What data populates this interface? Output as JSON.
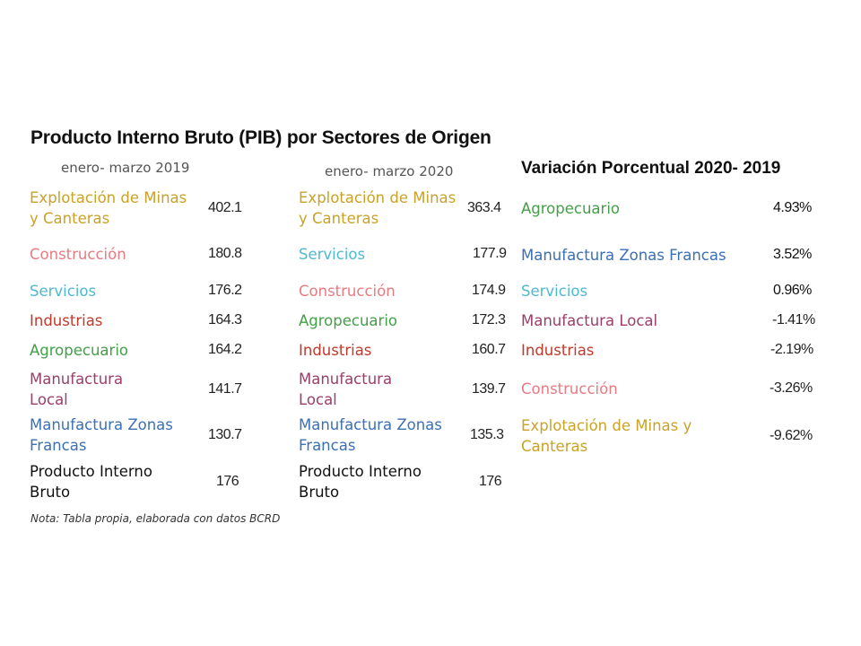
{
  "title": "Producto Interno Bruto (PIB) por Sectores de Origen",
  "colors": {
    "mining": "#c9a227",
    "construction": "#e77b82",
    "services": "#4fb9cf",
    "industries": "#c0392b",
    "agro": "#43a047",
    "local": "#9c3d6b",
    "freezones": "#3b6fb6",
    "total": "#111111"
  },
  "table2019": {
    "heading": "enero- marzo 2019",
    "rows": [
      {
        "name": "Explotación de Minas y Canteras",
        "value": "402.1",
        "color": "#c9a227"
      },
      {
        "name": "Construcción",
        "value": "180.8",
        "color": "#e77b82"
      },
      {
        "name": "Servicios",
        "value": "176.2",
        "color": "#4fb9cf"
      },
      {
        "name": "Industrias",
        "value": "164.3",
        "color": "#c0392b"
      },
      {
        "name": "Agropecuario",
        "value": "164.2",
        "color": "#43a047"
      },
      {
        "name": "Manufactura Local",
        "value": "141.7",
        "color": "#9c3d6b"
      },
      {
        "name": "Manufactura Zonas Francas",
        "value": "130.7",
        "color": "#3b6fb6"
      },
      {
        "name": "Producto Interno Bruto",
        "value": "176",
        "color": "#111111"
      }
    ]
  },
  "table2020": {
    "heading": "enero- marzo 2020",
    "rows": [
      {
        "name": "Explotación de Minas y Canteras",
        "value": "363.4",
        "color": "#c9a227"
      },
      {
        "name": "Servicios",
        "value": "177.9",
        "color": "#4fb9cf"
      },
      {
        "name": "Construcción",
        "value": "174.9",
        "color": "#e77b82"
      },
      {
        "name": "Agropecuario",
        "value": "172.3",
        "color": "#43a047"
      },
      {
        "name": "Industrias",
        "value": "160.7",
        "color": "#c0392b"
      },
      {
        "name": "Manufactura Local",
        "value": "139.7",
        "color": "#9c3d6b"
      },
      {
        "name": "Manufactura Zonas Francas",
        "value": "135.3",
        "color": "#3b6fb6"
      },
      {
        "name": "Producto Interno Bruto",
        "value": "176",
        "color": "#111111"
      }
    ]
  },
  "variation": {
    "heading": "Variación Porcentual 2020- 2019",
    "rows": [
      {
        "name": "Agropecuario",
        "value": "4.93%",
        "color": "#43a047"
      },
      {
        "name": "Manufactura Zonas Francas",
        "value": "3.52%",
        "color": "#3b6fb6"
      },
      {
        "name": "Servicios",
        "value": "0.96%",
        "color": "#4fb9cf"
      },
      {
        "name": "Manufactura Local",
        "value": "-1.41%",
        "color": "#9c3d6b"
      },
      {
        "name": "Industrias",
        "value": "-2.19%",
        "color": "#c0392b"
      },
      {
        "name": "Construcción",
        "value": "-3.26%",
        "color": "#e77b82"
      },
      {
        "name": "Explotación de Minas y Canteras",
        "value": "-9.62%",
        "color": "#c9a227"
      }
    ]
  },
  "note": "Nota: Tabla propia, elaborada con datos BCRD"
}
